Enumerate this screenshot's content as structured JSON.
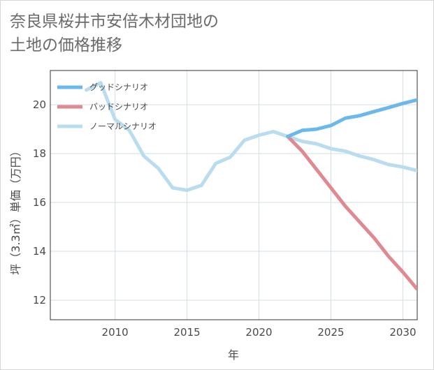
{
  "title": {
    "line1": "奈良県桜井市安倍木材団地の",
    "line2": "土地の価格推移"
  },
  "chart_data": {
    "type": "line",
    "xlabel": "年",
    "ylabel": "坪（3.3㎡）単価（万円）",
    "xlim": [
      2005.5,
      2031
    ],
    "ylim": [
      11.2,
      21.4
    ],
    "xticks": [
      2010,
      2015,
      2020,
      2025,
      2030
    ],
    "yticks": [
      12,
      14,
      16,
      18,
      20
    ],
    "xtick_labels": [
      "2010",
      "2015",
      "2020",
      "2025",
      "2030"
    ],
    "ytick_labels": [
      "12",
      "14",
      "16",
      "18",
      "20"
    ],
    "grid": true,
    "legend_position": "top-left",
    "series": [
      {
        "name": "グッドシナリオ",
        "color": "#6bb8ec",
        "x": [
          2022,
          2023,
          2024,
          2025,
          2026,
          2027,
          2028,
          2029,
          2030,
          2031
        ],
        "values": [
          18.7,
          18.95,
          19.0,
          19.15,
          19.45,
          19.55,
          19.72,
          19.88,
          20.05,
          20.2
        ]
      },
      {
        "name": "バッドシナリオ",
        "color": "#de8a90",
        "x": [
          2022,
          2023,
          2024,
          2025,
          2026,
          2027,
          2028,
          2029,
          2030,
          2031
        ],
        "values": [
          18.7,
          18.1,
          17.35,
          16.6,
          15.85,
          15.2,
          14.55,
          13.8,
          13.15,
          12.45
        ]
      },
      {
        "name": "ノーマルシナリオ",
        "color": "#b9ddef",
        "x": [
          2008,
          2009,
          2010,
          2011,
          2012,
          2013,
          2014,
          2015,
          2016,
          2017,
          2018,
          2019,
          2020,
          2021,
          2022,
          2023,
          2024,
          2025,
          2026,
          2027,
          2028,
          2029,
          2030,
          2031
        ],
        "values": [
          20.6,
          20.9,
          19.4,
          18.95,
          17.9,
          17.4,
          16.6,
          16.5,
          16.7,
          17.6,
          17.85,
          18.55,
          18.75,
          18.9,
          18.7,
          18.5,
          18.4,
          18.2,
          18.1,
          17.9,
          17.75,
          17.55,
          17.45,
          17.3
        ]
      }
    ]
  }
}
